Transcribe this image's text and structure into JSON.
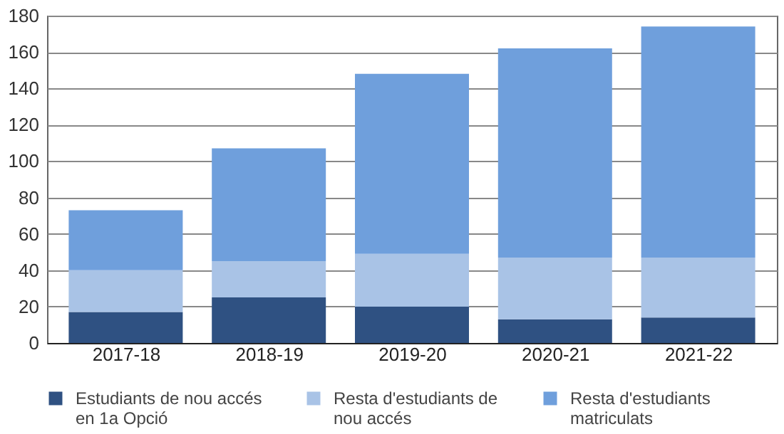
{
  "chart_data": {
    "type": "bar",
    "stacked": true,
    "categories": [
      "2017-18",
      "2018-19",
      "2019-20",
      "2020-21",
      "2021-22"
    ],
    "series": [
      {
        "name": "Estudiants de nou accés en 1a Opció",
        "color": "#2f5182",
        "values": [
          17,
          25,
          20,
          13,
          14
        ]
      },
      {
        "name": "Resta d'estudiants de nou accés",
        "color": "#a9c3e6",
        "values": [
          23,
          20,
          29,
          34,
          33
        ]
      },
      {
        "name": "Resta d'estudiants matriculats",
        "color": "#6f9fdc",
        "values": [
          33,
          62,
          99,
          115,
          127
        ]
      }
    ],
    "ylim": [
      0,
      180
    ],
    "yticks": [
      0,
      20,
      40,
      60,
      80,
      100,
      120,
      140,
      160,
      180
    ],
    "grid": "y",
    "legend": "bottom"
  }
}
